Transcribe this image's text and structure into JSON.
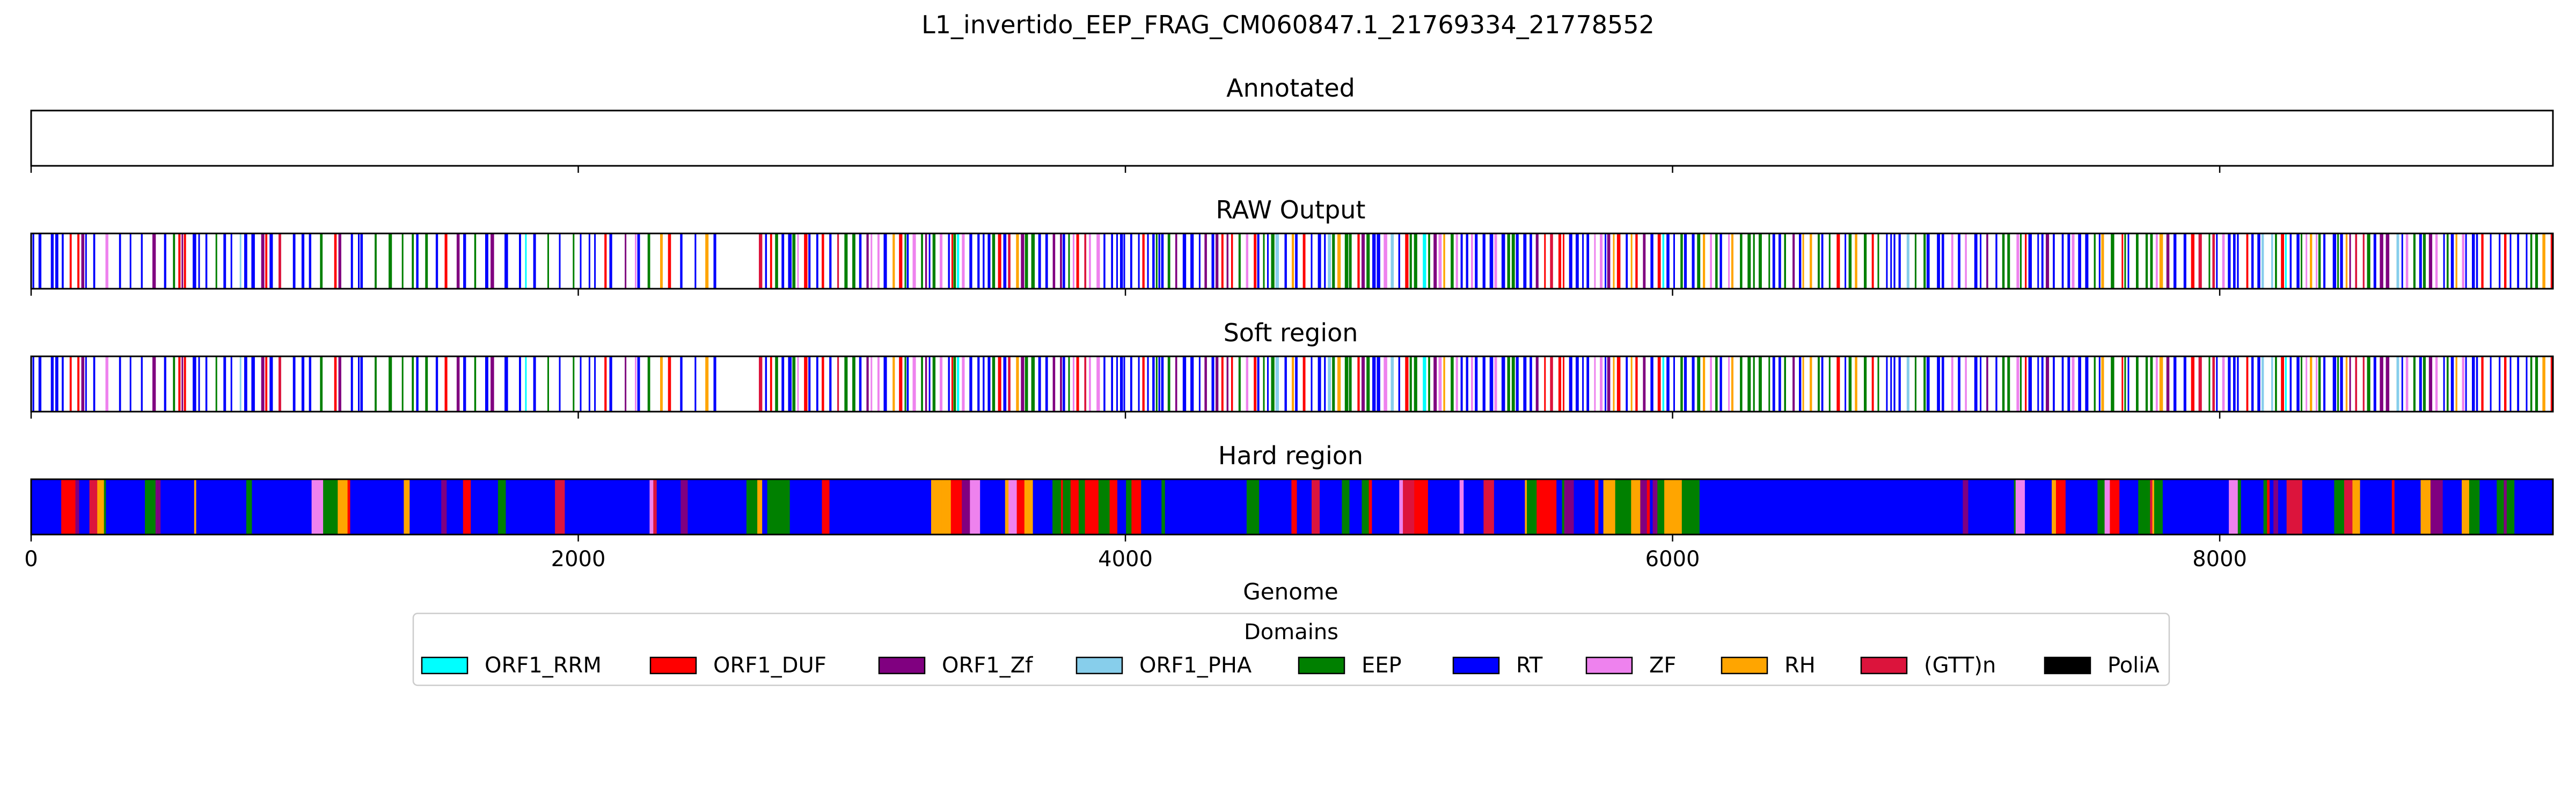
{
  "chart_data": {
    "type": "genome-track",
    "title": "L1_invertido_EEP_FRAG_CM060847.1_21769334_21778552",
    "xlabel": "Genome",
    "xlim": [
      0,
      9218
    ],
    "xticks": [
      0,
      2000,
      4000,
      6000,
      8000
    ],
    "panels": [
      {
        "name": "Annotated",
        "mode": "empty"
      },
      {
        "name": "RAW Output",
        "mode": "sparse",
        "seed": 11,
        "gap": [
          2540,
          2660
        ]
      },
      {
        "name": "Soft region",
        "mode": "sparse",
        "seed": 11,
        "gap": [
          2540,
          2660
        ]
      },
      {
        "name": "Hard region",
        "mode": "dense",
        "seed": 29
      }
    ],
    "legend": {
      "title": "Domains",
      "placement": "bottom-center",
      "entries": [
        {
          "label": "ORF1_RRM",
          "color": "#00ffff"
        },
        {
          "label": "ORF1_DUF",
          "color": "#ff0000"
        },
        {
          "label": "ORF1_Zf",
          "color": "#800080"
        },
        {
          "label": "ORF1_PHA",
          "color": "#87ceeb"
        },
        {
          "label": "EEP",
          "color": "#008000"
        },
        {
          "label": "RT",
          "color": "#0000ff"
        },
        {
          "label": "ZF",
          "color": "#ee82ee"
        },
        {
          "label": "RH",
          "color": "#ffa500"
        },
        {
          "label": "(GTT)n",
          "color": "#dc143c"
        },
        {
          "label": "PoliA",
          "color": "#000000"
        }
      ]
    }
  }
}
